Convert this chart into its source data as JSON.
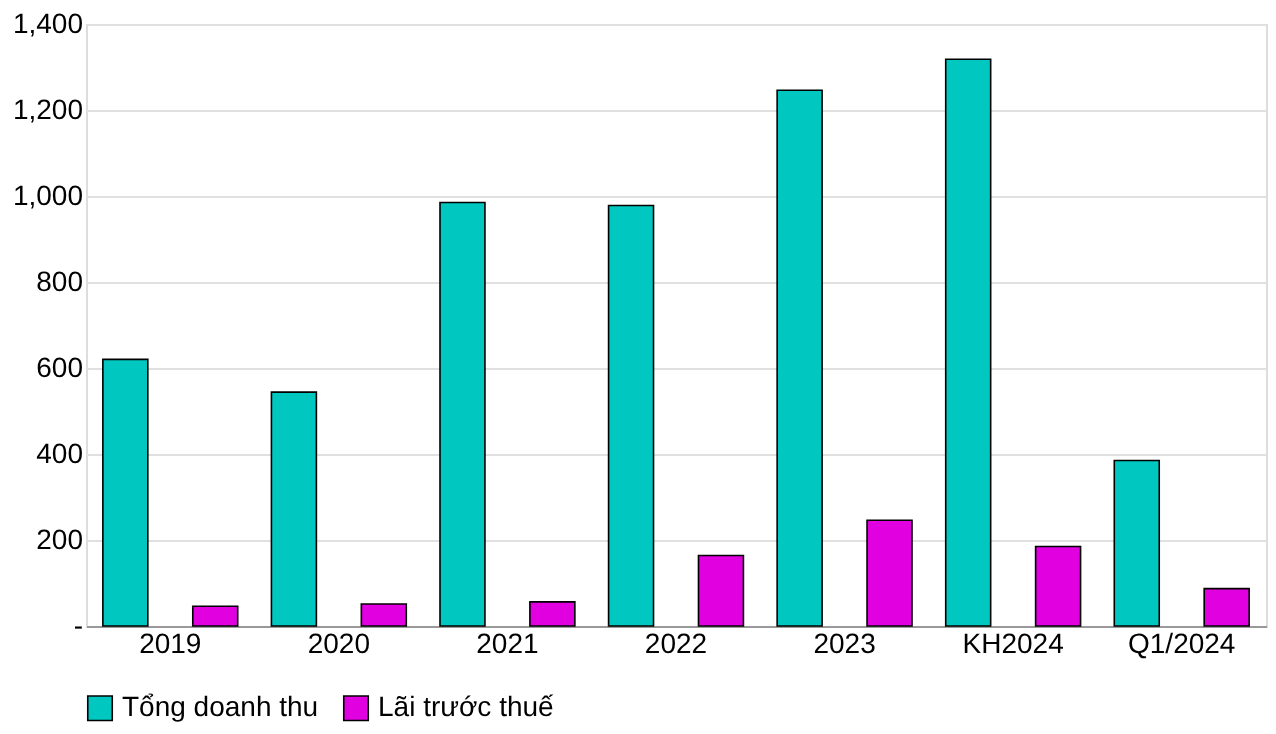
{
  "chart_data": {
    "type": "bar",
    "categories": [
      "2019",
      "2020",
      "2021",
      "2022",
      "2023",
      "KH2024",
      "Q1/2024"
    ],
    "series": [
      {
        "name": "Tổng doanh thu",
        "color": "#00c8c0",
        "values": [
          620,
          544,
          985,
          978,
          1246,
          1318,
          385
        ]
      },
      {
        "name": "Lãi trước thuế",
        "color": "#e000e0",
        "values": [
          46,
          51,
          56,
          164,
          246,
          185,
          87
        ]
      }
    ],
    "ylim": [
      0,
      1400
    ],
    "yticks": [
      {
        "value": 0,
        "label": "-"
      },
      200,
      400,
      600,
      800,
      {
        "value": 1000,
        "label": "1,000"
      },
      {
        "value": 1200,
        "label": "1,200"
      },
      {
        "value": 1400,
        "label": "1,400"
      }
    ],
    "grid": "y",
    "legend": "bottom"
  }
}
